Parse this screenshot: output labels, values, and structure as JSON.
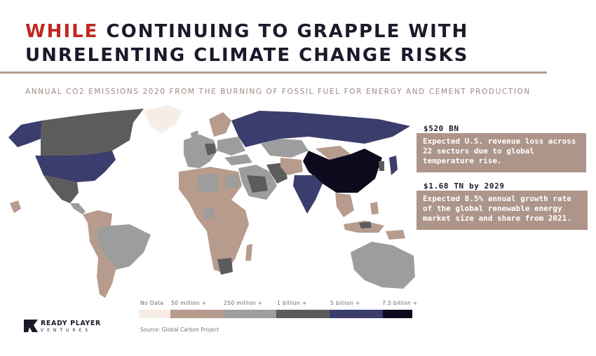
{
  "header": {
    "title_accent": "WHILE",
    "title_rest": " CONTINUING TO GRAPPLE WITH",
    "title_line2": "UNRELENTING CLIMATE CHANGE RISKS",
    "subtitle": "ANNUAL CO2 EMISSIONS 2020 FROM THE BURNING OF FOSSIL FUEL FOR ENERGY AND CEMENT PRODUCTION"
  },
  "stats": [
    {
      "value": "$520 BN",
      "description": "Expected U.S. revenue loss across 22 sectors due to global temperature rise."
    },
    {
      "value": "$1.68 TN by 2029",
      "description": "Expected 8.5% annual growth rate of the global renewable energy market size and share from 2021."
    }
  ],
  "legend": {
    "items": [
      {
        "label": "No Data",
        "color": "#f6ede6"
      },
      {
        "label": "50 million +",
        "color": "#b79b8c"
      },
      {
        "label": "250 million +",
        "color": "#9d9d9d"
      },
      {
        "label": "1 billion +",
        "color": "#5c5c5c"
      },
      {
        "label": "5 billion +",
        "color": "#3b3d6c"
      },
      {
        "label": "7.5 billion +",
        "color": "#0c0b1e"
      }
    ]
  },
  "source": "Source: Global Carbon Project",
  "logo": {
    "line1": "READY PLAYER",
    "line2": "VENTURES"
  }
}
